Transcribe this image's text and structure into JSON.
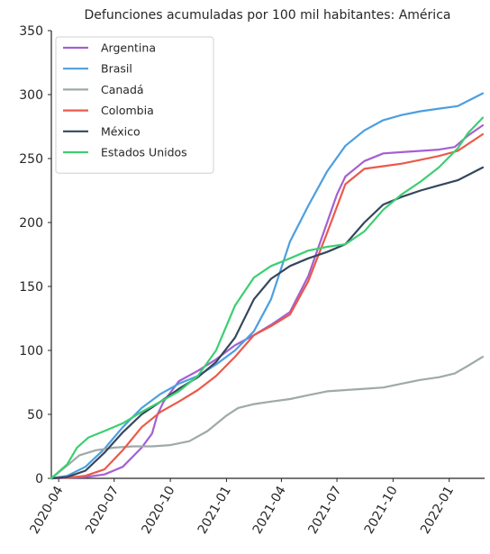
{
  "chart_data": {
    "type": "line",
    "title": "Defunciones acumuladas por 100 mil habitantes: América",
    "xlabel": "",
    "ylabel": "",
    "ylim": [
      0,
      350
    ],
    "xlim": [
      "2020-03-20",
      "2022-02-28"
    ],
    "grid": false,
    "legend": "top-left",
    "y_ticks": [
      "0",
      "50",
      "100",
      "150",
      "200",
      "250",
      "300",
      "350"
    ],
    "x_ticks": [
      "2020-04",
      "2020-07",
      "2020-10",
      "2021-01",
      "2021-04",
      "2021-07",
      "2021-10",
      "2022-01"
    ],
    "x_tick_dates": [
      "2020-04-01",
      "2020-07-01",
      "2020-10-01",
      "2021-01-01",
      "2021-04-01",
      "2021-07-01",
      "2021-10-01",
      "2022-01-01"
    ],
    "series": [
      {
        "name": "Argentina",
        "color": "#a55fd1",
        "points": [
          [
            "2020-03-20",
            0
          ],
          [
            "2020-04-15",
            0.5
          ],
          [
            "2020-05-15",
            1
          ],
          [
            "2020-06-15",
            3
          ],
          [
            "2020-07-15",
            9
          ],
          [
            "2020-08-15",
            24
          ],
          [
            "2020-09-01",
            35
          ],
          [
            "2020-09-10",
            50
          ],
          [
            "2020-09-20",
            60
          ],
          [
            "2020-10-15",
            76
          ],
          [
            "2020-11-15",
            84
          ],
          [
            "2020-12-15",
            93
          ],
          [
            "2021-01-15",
            104
          ],
          [
            "2021-02-15",
            112
          ],
          [
            "2021-03-15",
            120
          ],
          [
            "2021-04-15",
            130
          ],
          [
            "2021-05-15",
            158
          ],
          [
            "2021-06-15",
            200
          ],
          [
            "2021-07-01",
            222
          ],
          [
            "2021-07-15",
            236
          ],
          [
            "2021-08-15",
            248
          ],
          [
            "2021-09-15",
            254
          ],
          [
            "2021-10-15",
            255
          ],
          [
            "2021-11-15",
            256
          ],
          [
            "2021-12-15",
            257
          ],
          [
            "2022-01-10",
            259
          ],
          [
            "2022-02-01",
            268
          ],
          [
            "2022-02-25",
            276
          ]
        ]
      },
      {
        "name": "Brasil",
        "color": "#4c9fe0",
        "points": [
          [
            "2020-03-20",
            0
          ],
          [
            "2020-04-15",
            2
          ],
          [
            "2020-05-15",
            9
          ],
          [
            "2020-06-15",
            23
          ],
          [
            "2020-07-15",
            40
          ],
          [
            "2020-08-15",
            55
          ],
          [
            "2020-09-15",
            66
          ],
          [
            "2020-10-15",
            74
          ],
          [
            "2020-11-15",
            80
          ],
          [
            "2020-12-15",
            89
          ],
          [
            "2021-01-15",
            100
          ],
          [
            "2021-02-15",
            115
          ],
          [
            "2021-03-15",
            140
          ],
          [
            "2021-04-15",
            185
          ],
          [
            "2021-05-15",
            213
          ],
          [
            "2021-06-15",
            240
          ],
          [
            "2021-07-15",
            260
          ],
          [
            "2021-08-15",
            272
          ],
          [
            "2021-09-15",
            280
          ],
          [
            "2021-10-15",
            284
          ],
          [
            "2021-11-15",
            287
          ],
          [
            "2021-12-15",
            289
          ],
          [
            "2022-01-15",
            291
          ],
          [
            "2022-02-25",
            301
          ]
        ]
      },
      {
        "name": "Canadá",
        "color": "#9eaaa9",
        "points": [
          [
            "2020-03-20",
            0
          ],
          [
            "2020-04-15",
            10
          ],
          [
            "2020-05-05",
            18
          ],
          [
            "2020-06-01",
            22
          ],
          [
            "2020-07-01",
            24
          ],
          [
            "2020-08-01",
            25
          ],
          [
            "2020-09-01",
            25
          ],
          [
            "2020-10-01",
            26
          ],
          [
            "2020-11-01",
            29
          ],
          [
            "2020-12-01",
            37
          ],
          [
            "2021-01-01",
            49
          ],
          [
            "2021-01-20",
            55
          ],
          [
            "2021-02-15",
            58
          ],
          [
            "2021-03-15",
            60
          ],
          [
            "2021-04-15",
            62
          ],
          [
            "2021-05-15",
            65
          ],
          [
            "2021-06-15",
            68
          ],
          [
            "2021-07-15",
            69
          ],
          [
            "2021-08-15",
            70
          ],
          [
            "2021-09-15",
            71
          ],
          [
            "2021-10-15",
            74
          ],
          [
            "2021-11-15",
            77
          ],
          [
            "2021-12-15",
            79
          ],
          [
            "2022-01-10",
            82
          ],
          [
            "2022-02-01",
            88
          ],
          [
            "2022-02-25",
            95
          ]
        ]
      },
      {
        "name": "Colombia",
        "color": "#ea5a4a",
        "points": [
          [
            "2020-03-20",
            0
          ],
          [
            "2020-04-15",
            0.5
          ],
          [
            "2020-05-15",
            2
          ],
          [
            "2020-06-15",
            7
          ],
          [
            "2020-07-15",
            22
          ],
          [
            "2020-08-15",
            40
          ],
          [
            "2020-09-15",
            52
          ],
          [
            "2020-10-15",
            60
          ],
          [
            "2020-11-15",
            69
          ],
          [
            "2020-12-15",
            80
          ],
          [
            "2021-01-15",
            95
          ],
          [
            "2021-02-15",
            112
          ],
          [
            "2021-03-15",
            119
          ],
          [
            "2021-04-15",
            128
          ],
          [
            "2021-05-15",
            154
          ],
          [
            "2021-06-15",
            192
          ],
          [
            "2021-07-15",
            230
          ],
          [
            "2021-08-15",
            242
          ],
          [
            "2021-09-15",
            244
          ],
          [
            "2021-10-15",
            246
          ],
          [
            "2021-11-15",
            249
          ],
          [
            "2021-12-15",
            252
          ],
          [
            "2022-01-15",
            256
          ],
          [
            "2022-02-25",
            269
          ]
        ]
      },
      {
        "name": "México",
        "color": "#35475d",
        "points": [
          [
            "2020-03-20",
            0
          ],
          [
            "2020-04-15",
            1
          ],
          [
            "2020-05-15",
            6
          ],
          [
            "2020-06-15",
            20
          ],
          [
            "2020-07-15",
            36
          ],
          [
            "2020-08-15",
            50
          ],
          [
            "2020-09-15",
            60
          ],
          [
            "2020-10-15",
            70
          ],
          [
            "2020-11-15",
            79
          ],
          [
            "2020-12-15",
            91
          ],
          [
            "2021-01-15",
            110
          ],
          [
            "2021-02-15",
            140
          ],
          [
            "2021-03-15",
            156
          ],
          [
            "2021-04-15",
            166
          ],
          [
            "2021-05-15",
            172
          ],
          [
            "2021-06-15",
            177
          ],
          [
            "2021-07-15",
            183
          ],
          [
            "2021-08-15",
            200
          ],
          [
            "2021-09-15",
            214
          ],
          [
            "2021-10-15",
            220
          ],
          [
            "2021-11-15",
            225
          ],
          [
            "2021-12-15",
            229
          ],
          [
            "2022-01-15",
            233
          ],
          [
            "2022-02-25",
            243
          ]
        ]
      },
      {
        "name": "Estados Unidos",
        "color": "#3ccf72",
        "points": [
          [
            "2020-03-20",
            0
          ],
          [
            "2020-04-15",
            11
          ],
          [
            "2020-05-01",
            24
          ],
          [
            "2020-05-20",
            32
          ],
          [
            "2020-06-15",
            37
          ],
          [
            "2020-07-15",
            43
          ],
          [
            "2020-08-15",
            52
          ],
          [
            "2020-09-15",
            60
          ],
          [
            "2020-10-15",
            68
          ],
          [
            "2020-11-15",
            80
          ],
          [
            "2020-12-15",
            100
          ],
          [
            "2021-01-15",
            135
          ],
          [
            "2021-02-15",
            157
          ],
          [
            "2021-03-15",
            166
          ],
          [
            "2021-04-15",
            172
          ],
          [
            "2021-05-15",
            178
          ],
          [
            "2021-06-15",
            181
          ],
          [
            "2021-07-15",
            183
          ],
          [
            "2021-08-15",
            193
          ],
          [
            "2021-09-15",
            210
          ],
          [
            "2021-10-15",
            222
          ],
          [
            "2021-11-15",
            232
          ],
          [
            "2021-12-15",
            243
          ],
          [
            "2022-01-15",
            258
          ],
          [
            "2022-02-01",
            270
          ],
          [
            "2022-02-25",
            282
          ]
        ]
      }
    ]
  }
}
